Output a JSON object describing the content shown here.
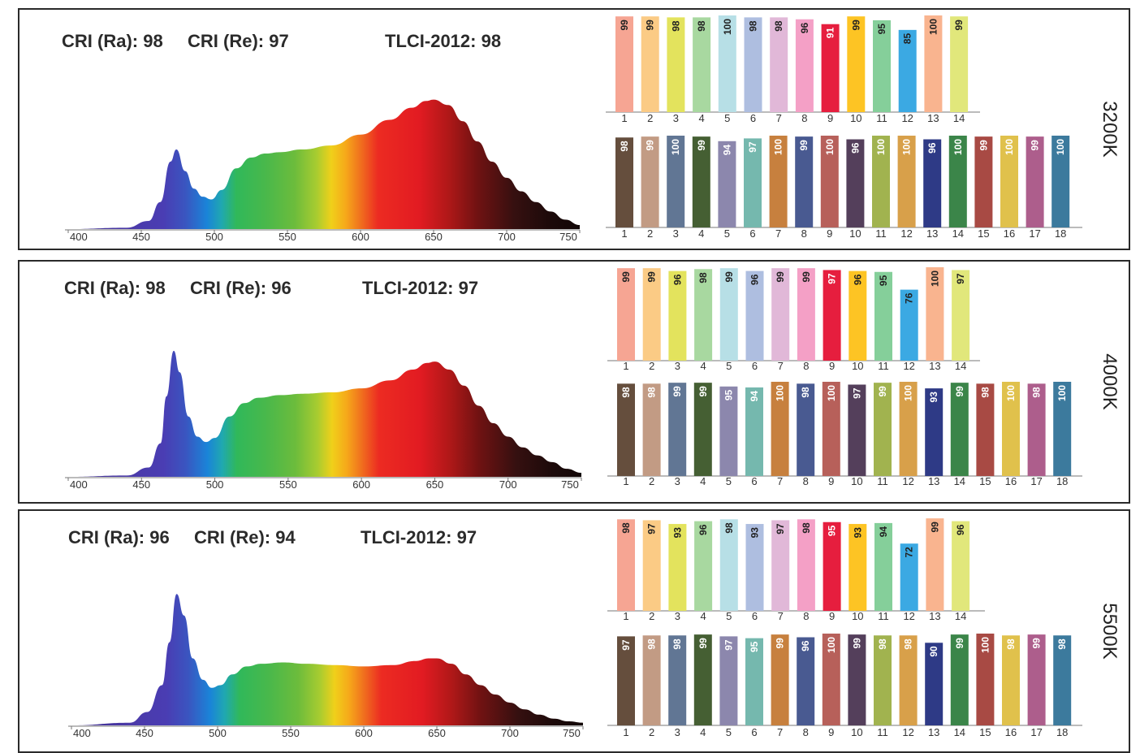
{
  "chart_data": [
    {
      "type": "area",
      "cct": "3200K",
      "cri_ra_text": "CRI (Ra): 98",
      "cri_re_text": "CRI (Re): 97",
      "tlci_text": "TLCI-2012: 98",
      "x_ticks": [
        "400",
        "450",
        "500",
        "550",
        "600",
        "650",
        "700",
        "750"
      ],
      "xlim": [
        400,
        750
      ],
      "spectrum": {
        "x": [
          400,
          440,
          455,
          463,
          470,
          474,
          480,
          486,
          492,
          498,
          505,
          515,
          525,
          535,
          545,
          560,
          580,
          600,
          620,
          635,
          645,
          650,
          660,
          670,
          680,
          690,
          700,
          710,
          720,
          730,
          740,
          750
        ],
        "y": [
          0.0,
          0.01,
          0.06,
          0.2,
          0.5,
          0.59,
          0.43,
          0.3,
          0.24,
          0.22,
          0.29,
          0.45,
          0.53,
          0.56,
          0.57,
          0.59,
          0.62,
          0.7,
          0.81,
          0.9,
          0.95,
          0.96,
          0.92,
          0.8,
          0.65,
          0.5,
          0.38,
          0.28,
          0.2,
          0.13,
          0.07,
          0.03
        ]
      },
      "r_values": {
        "categories": [
          "1",
          "2",
          "3",
          "4",
          "5",
          "6",
          "7",
          "8",
          "9",
          "10",
          "11",
          "12",
          "13",
          "14"
        ],
        "values": [
          99,
          99,
          98,
          98,
          100,
          98,
          98,
          96,
          91,
          99,
          95,
          85,
          100,
          99
        ]
      },
      "re_values": {
        "categories": [
          "1",
          "2",
          "3",
          "4",
          "5",
          "6",
          "7",
          "8",
          "9",
          "10",
          "11",
          "12",
          "13",
          "14",
          "15",
          "16",
          "17",
          "18"
        ],
        "values": [
          98,
          99,
          100,
          99,
          94,
          97,
          100,
          99,
          100,
          96,
          100,
          100,
          96,
          100,
          99,
          100,
          99,
          100
        ]
      }
    },
    {
      "type": "area",
      "cct": "4000K",
      "cri_ra_text": "CRI (Ra): 98",
      "cri_re_text": "CRI (Re): 96",
      "tlci_text": "TLCI-2012: 97",
      "x_ticks": [
        "400",
        "450",
        "500",
        "550",
        "600",
        "650",
        "700",
        "750"
      ],
      "xlim": [
        400,
        750
      ],
      "spectrum": {
        "x": [
          400,
          440,
          455,
          463,
          467,
          472,
          476,
          482,
          488,
          494,
          500,
          510,
          520,
          530,
          545,
          560,
          580,
          600,
          620,
          635,
          645,
          650,
          660,
          670,
          680,
          690,
          700,
          710,
          720,
          730,
          740,
          750
        ],
        "y": [
          0.0,
          0.01,
          0.07,
          0.25,
          0.6,
          0.94,
          0.78,
          0.45,
          0.3,
          0.26,
          0.29,
          0.45,
          0.55,
          0.59,
          0.61,
          0.62,
          0.63,
          0.66,
          0.72,
          0.8,
          0.85,
          0.86,
          0.8,
          0.68,
          0.53,
          0.4,
          0.3,
          0.22,
          0.16,
          0.11,
          0.06,
          0.03
        ]
      },
      "r_values": {
        "categories": [
          "1",
          "2",
          "3",
          "4",
          "5",
          "6",
          "7",
          "8",
          "9",
          "10",
          "11",
          "12",
          "13",
          "14"
        ],
        "values": [
          99,
          99,
          96,
          98,
          99,
          96,
          99,
          99,
          97,
          96,
          95,
          76,
          100,
          97
        ]
      },
      "re_values": {
        "categories": [
          "1",
          "2",
          "3",
          "4",
          "5",
          "6",
          "7",
          "8",
          "9",
          "10",
          "11",
          "12",
          "13",
          "14",
          "15",
          "16",
          "17",
          "18"
        ],
        "values": [
          98,
          98,
          99,
          99,
          95,
          94,
          100,
          98,
          100,
          97,
          99,
          100,
          93,
          99,
          98,
          100,
          98,
          100
        ]
      }
    },
    {
      "type": "area",
      "cct": "5500K",
      "cri_ra_text": "CRI (Ra): 96",
      "cri_re_text": "CRI (Re): 94",
      "tlci_text": "TLCI-2012: 97",
      "x_ticks": [
        "400",
        "450",
        "500",
        "550",
        "600",
        "650",
        "700",
        "750"
      ],
      "xlim": [
        400,
        750
      ],
      "spectrum": {
        "x": [
          400,
          440,
          452,
          462,
          467,
          472,
          477,
          483,
          490,
          496,
          502,
          510,
          520,
          530,
          545,
          560,
          580,
          600,
          620,
          635,
          645,
          650,
          660,
          670,
          680,
          690,
          700,
          710,
          720,
          730,
          740,
          750
        ],
        "y": [
          0.0,
          0.02,
          0.1,
          0.3,
          0.62,
          0.98,
          0.82,
          0.5,
          0.34,
          0.28,
          0.3,
          0.38,
          0.44,
          0.46,
          0.47,
          0.46,
          0.45,
          0.44,
          0.45,
          0.48,
          0.5,
          0.5,
          0.46,
          0.38,
          0.3,
          0.23,
          0.17,
          0.12,
          0.08,
          0.05,
          0.03,
          0.02
        ]
      },
      "r_values": {
        "categories": [
          "1",
          "2",
          "3",
          "4",
          "5",
          "6",
          "7",
          "8",
          "9",
          "10",
          "11",
          "12",
          "13",
          "14"
        ],
        "values": [
          98,
          97,
          93,
          96,
          98,
          93,
          97,
          98,
          95,
          93,
          94,
          72,
          99,
          96
        ]
      },
      "re_values": {
        "categories": [
          "1",
          "2",
          "3",
          "4",
          "5",
          "6",
          "7",
          "8",
          "9",
          "10",
          "11",
          "12",
          "13",
          "14",
          "15",
          "16",
          "17",
          "18"
        ],
        "values": [
          97,
          98,
          98,
          99,
          97,
          95,
          99,
          96,
          100,
          99,
          98,
          98,
          90,
          99,
          100,
          98,
          99,
          98
        ]
      }
    }
  ],
  "colors": {
    "r_bars": [
      "#f6a593",
      "#fbcb85",
      "#e3e35d",
      "#a8d8a0",
      "#b7dfe6",
      "#aebee0",
      "#e1b8d8",
      "#f4a0c6",
      "#e61e3e",
      "#fdc424",
      "#85cf9a",
      "#3ba9e3",
      "#f9b48f",
      "#e1e77b"
    ],
    "re_bars": [
      "#654e3d",
      "#c29b84",
      "#617694",
      "#455f33",
      "#8c87ad",
      "#75b8ae",
      "#c7803e",
      "#495a91",
      "#b7605a",
      "#543f5b",
      "#a1b34f",
      "#d8a04a",
      "#2e3a86",
      "#3b8549",
      "#a84a44",
      "#e0c14c",
      "#ad5e8c",
      "#3c7a9d"
    ],
    "r_value_text": [
      "#222",
      "#222",
      "#222",
      "#222",
      "#222",
      "#222",
      "#222",
      "#222",
      "#fff",
      "#222",
      "#222",
      "#222",
      "#222",
      "#222"
    ],
    "re_value_text": "#ffffff",
    "frame": "#2a2a2a"
  }
}
